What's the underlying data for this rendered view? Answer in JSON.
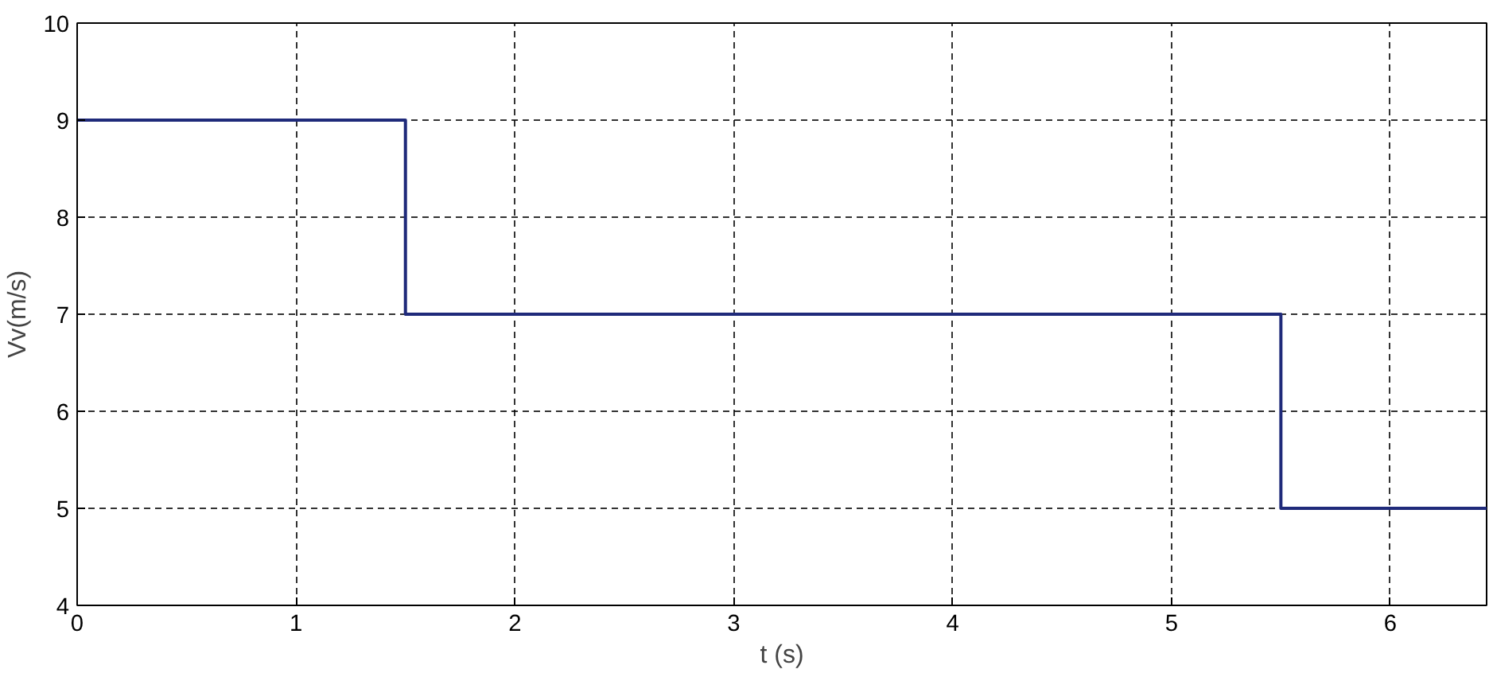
{
  "chart_data": {
    "type": "step",
    "xlabel": "t (s)",
    "ylabel": "Vv(m/s)",
    "x": [
      0,
      1.5,
      5.5,
      6.44
    ],
    "series": [
      {
        "color": "#1f2a7a",
        "values": [
          9,
          7,
          5,
          5
        ]
      }
    ],
    "xlim": [
      0,
      6.44
    ],
    "ylim": [
      4,
      10
    ],
    "xticks": [
      0,
      1,
      2,
      3,
      4,
      5,
      6
    ],
    "yticks": [
      4,
      5,
      6,
      7,
      8,
      9,
      10
    ],
    "grid": true,
    "line_style": "solid"
  }
}
